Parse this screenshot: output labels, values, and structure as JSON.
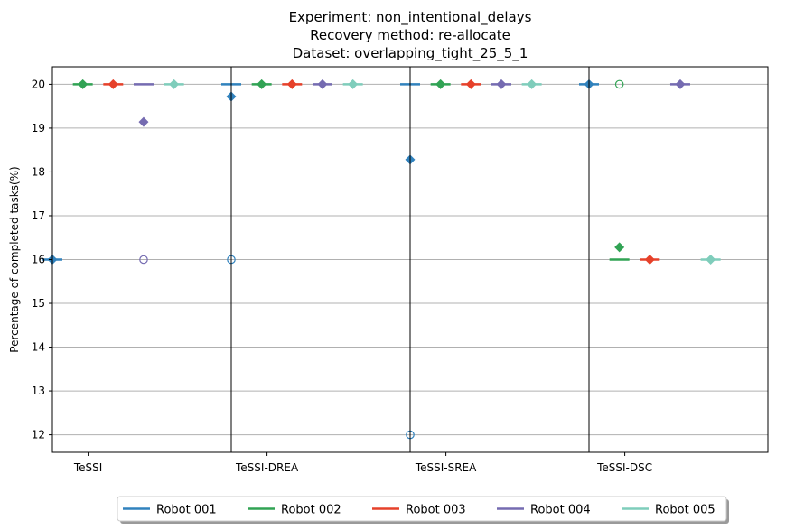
{
  "chart_data": {
    "type": "box",
    "title": [
      "Experiment: non_intentional_delays",
      "Recovery method: re-allocate",
      "Dataset: overlapping_tight_25_5_1"
    ],
    "xlabel": "",
    "ylabel": "Percentage of completed tasks(%)",
    "ylim": [
      11.6,
      20.4
    ],
    "yticks": [
      12,
      13,
      14,
      15,
      16,
      17,
      18,
      19,
      20
    ],
    "grid": "y",
    "legend_position": "bottom-center",
    "categories": [
      "TeSSI",
      "TeSSI-DREA",
      "TeSSI-SREA",
      "TeSSI-DSC"
    ],
    "series": [
      {
        "name": "Robot 001",
        "color": "#3182bd",
        "median": [
          16,
          20,
          20,
          20
        ],
        "mean": [
          16,
          19.72,
          18.28,
          20
        ],
        "outliers": [
          [],
          [
            16
          ],
          [
            12
          ],
          []
        ]
      },
      {
        "name": "Robot 002",
        "color": "#31a354",
        "median": [
          20,
          20,
          20,
          16
        ],
        "mean": [
          20,
          20,
          20,
          16.28
        ],
        "outliers": [
          [],
          [],
          [],
          [
            20
          ]
        ]
      },
      {
        "name": "Robot 003",
        "color": "#e6412a",
        "median": [
          20,
          20,
          20,
          16
        ],
        "mean": [
          20,
          20,
          20,
          16
        ],
        "outliers": [
          [],
          [],
          [],
          []
        ]
      },
      {
        "name": "Robot 004",
        "color": "#756bb1",
        "median": [
          20,
          20,
          20,
          20
        ],
        "mean": [
          19.14,
          20,
          20,
          20
        ],
        "outliers": [
          [
            16
          ],
          [],
          [],
          []
        ]
      },
      {
        "name": "Robot 005",
        "color": "#7fcdbb",
        "median": [
          20,
          20,
          20,
          16
        ],
        "mean": [
          20,
          20,
          20,
          16
        ],
        "outliers": [
          [],
          [],
          [],
          []
        ]
      }
    ]
  }
}
